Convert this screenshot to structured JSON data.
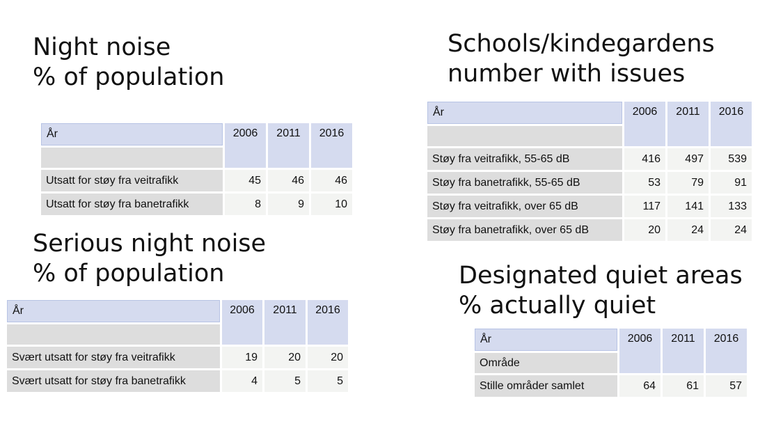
{
  "panels": {
    "night_noise": {
      "title_line1": "Night noise",
      "title_line2": "% of population",
      "header_label": "År",
      "header_sub": "",
      "years": [
        "2006",
        "2011",
        "2016"
      ],
      "rows": [
        {
          "label": "Utsatt for støy fra veitrafikk",
          "values": [
            "45",
            "46",
            "46"
          ]
        },
        {
          "label": "Utsatt for støy fra banetrafikk",
          "values": [
            "8",
            "9",
            "10"
          ]
        }
      ]
    },
    "serious_night_noise": {
      "title_line1": "Serious night noise",
      "title_line2": "% of population",
      "header_label": "År",
      "header_sub": "",
      "years": [
        "2006",
        "2011",
        "2016"
      ],
      "rows": [
        {
          "label": "Svært utsatt for støy fra veitrafikk",
          "values": [
            "19",
            "20",
            "20"
          ]
        },
        {
          "label": "Svært utsatt for støy fra banetrafikk",
          "values": [
            "4",
            "5",
            "5"
          ]
        }
      ]
    },
    "schools": {
      "title_line1": "Schools/kindegardens",
      "title_line2": "number with issues",
      "header_label": "År",
      "header_sub": "",
      "years": [
        "2006",
        "2011",
        "2016"
      ],
      "rows": [
        {
          "label": "Støy fra veitrafikk, 55-65 dB",
          "values": [
            "416",
            "497",
            "539"
          ]
        },
        {
          "label": "Støy fra banetrafikk, 55-65 dB",
          "values": [
            "53",
            "79",
            "91"
          ]
        },
        {
          "label": "Støy fra veitrafikk, over 65 dB",
          "values": [
            "117",
            "141",
            "133"
          ]
        },
        {
          "label": "Støy fra banetrafikk, over 65 dB",
          "values": [
            "20",
            "24",
            "24"
          ]
        }
      ]
    },
    "quiet_areas": {
      "title_line1": "Designated quiet areas",
      "title_line2": "% actually quiet",
      "header_label": "År",
      "header_sub": "Område",
      "years": [
        "2006",
        "2011",
        "2016"
      ],
      "rows": [
        {
          "label": "Stille områder samlet",
          "values": [
            "64",
            "61",
            "57"
          ]
        }
      ]
    }
  }
}
